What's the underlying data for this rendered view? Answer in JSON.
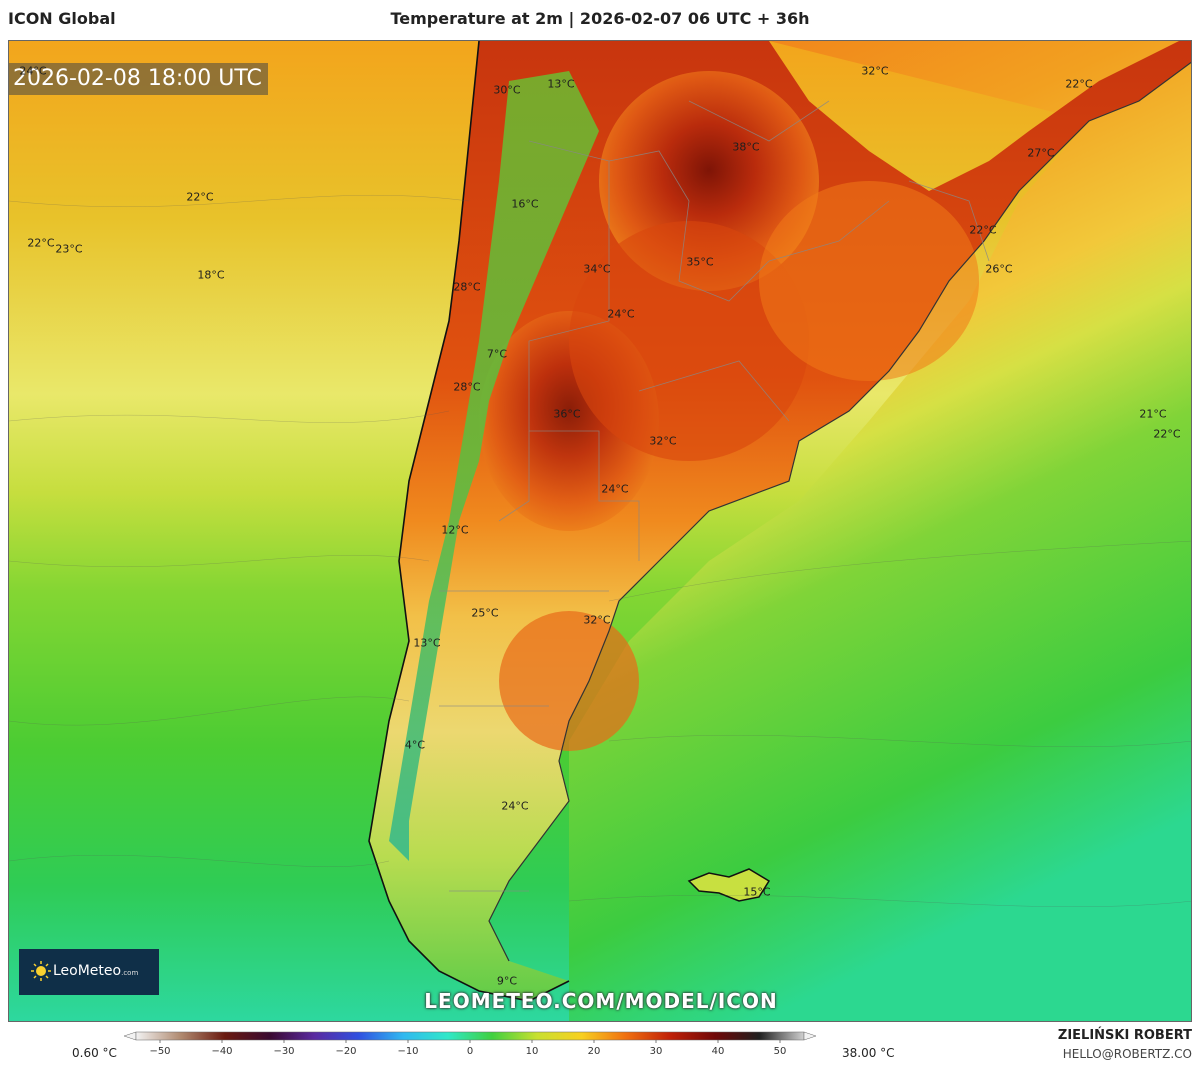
{
  "header": {
    "model_name": "ICON Global",
    "title": "Temperature at 2m | 2026-02-07 06 UTC + 36h"
  },
  "map": {
    "valid_time": "2026-02-08 18:00 UTC",
    "website": "LEOMETEO.COM/MODEL/ICON",
    "logo": {
      "name": "LeoMeteo",
      "domain": ".com",
      "icon": "sun-icon"
    },
    "temperature_labels": [
      {
        "text": "24°C"
      },
      {
        "text": "30°C"
      },
      {
        "text": "13°C"
      },
      {
        "text": "32°C"
      },
      {
        "text": "22°C"
      },
      {
        "text": "38°C"
      },
      {
        "text": "27°C"
      },
      {
        "text": "22°C"
      },
      {
        "text": "16°C"
      },
      {
        "text": "22°C"
      },
      {
        "text": "23°C"
      },
      {
        "text": "18°C"
      },
      {
        "text": "22°C"
      },
      {
        "text": "34°C"
      },
      {
        "text": "35°C"
      },
      {
        "text": "26°C"
      },
      {
        "text": "28°C"
      },
      {
        "text": "24°C"
      },
      {
        "text": "7°C"
      },
      {
        "text": "28°C"
      },
      {
        "text": "36°C"
      },
      {
        "text": "21°C"
      },
      {
        "text": "32°C"
      },
      {
        "text": "22°C"
      },
      {
        "text": "24°C"
      },
      {
        "text": "12°C"
      },
      {
        "text": "25°C"
      },
      {
        "text": "32°C"
      },
      {
        "text": "13°C"
      },
      {
        "text": "4°C"
      },
      {
        "text": "24°C"
      },
      {
        "text": "15°C"
      },
      {
        "text": "9°C"
      }
    ]
  },
  "legend": {
    "min_value": "0.60 °C",
    "max_value": "38.00 °C",
    "ticks": [
      "−50",
      "−40",
      "−30",
      "−20",
      "−10",
      "0",
      "10",
      "20",
      "30",
      "40",
      "50"
    ],
    "color_stops": [
      "#f2f2f2",
      "#b08a70",
      "#6a1a10",
      "#3a0a30",
      "#5a2aa0",
      "#3050e0",
      "#30b8f0",
      "#30e8c8",
      "#40d040",
      "#c8e030",
      "#f8d020",
      "#f07010",
      "#c02008",
      "#700808",
      "#202020",
      "#d0d0d0"
    ]
  },
  "footer": {
    "author_name": "ZIELIŃSKI ROBERT",
    "author_email": "HELLO@ROBERTZ.CO"
  }
}
